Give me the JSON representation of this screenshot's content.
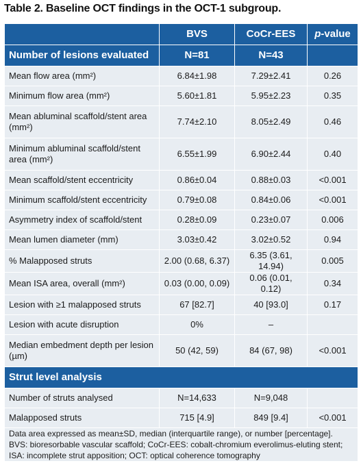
{
  "caption": "Table 2. Baseline OCT findings in the OCT-1 subgroup.",
  "header": {
    "col1": "",
    "bvs": "BVS",
    "eesl": "CoCr-EES",
    "p_prefix": "p",
    "p_suffix": "-value"
  },
  "lesions_section": {
    "label": "Number of lesions evaluated",
    "bvs": "N=81",
    "ees": "N=43",
    "p": ""
  },
  "lesion_rows": [
    {
      "label": "Mean flow area (mm²)",
      "bvs": "6.84±1.98",
      "ees": "7.29±2.41",
      "p": "0.26"
    },
    {
      "label": "Minimum flow area (mm²)",
      "bvs": "5.60±1.81",
      "ees": "5.95±2.23",
      "p": "0.35"
    },
    {
      "label": "Mean abluminal scaffold/stent area (mm²)",
      "bvs": "7.74±2.10",
      "ees": "8.05±2.49",
      "p": "0.46"
    },
    {
      "label": "Minimum abluminal scaffold/stent area (mm²)",
      "bvs": "6.55±1.99",
      "ees": "6.90±2.44",
      "p": "0.40"
    },
    {
      "label": "Mean scaffold/stent eccentricity",
      "bvs": "0.86±0.04",
      "ees": "0.88±0.03",
      "p": "<0.001"
    },
    {
      "label": "Minimum scaffold/stent eccentricity",
      "bvs": "0.79±0.08",
      "ees": "0.84±0.06",
      "p": "<0.001"
    },
    {
      "label": "Asymmetry index of scaffold/stent",
      "bvs": "0.28±0.09",
      "ees": "0.23±0.07",
      "p": "0.006"
    },
    {
      "label": "Mean lumen diameter (mm)",
      "bvs": "3.03±0.42",
      "ees": "3.02±0.52",
      "p": "0.94"
    },
    {
      "label": "% Malapposed struts",
      "bvs": "2.00 (0.68, 6.37)",
      "ees": "6.35 (3.61, 14.94)",
      "p": "0.005"
    },
    {
      "label": "Mean ISA area, overall (mm²)",
      "bvs": "0.03 (0.00, 0.09)",
      "ees": "0.06 (0.01, 0.12)",
      "p": "0.34"
    },
    {
      "label": "Lesion with ≥1 malapposed struts",
      "bvs": "67 [82.7]",
      "ees": "40 [93.0]",
      "p": "0.17"
    },
    {
      "label": "Lesion with acute disruption",
      "bvs": "0%",
      "ees": "–",
      "p": ""
    },
    {
      "label": "Median embedment depth per lesion (µm)",
      "bvs": "50 (42, 59)",
      "ees": "84 (67, 98)",
      "p": "<0.001"
    }
  ],
  "strut_section": {
    "label": "Strut level analysis"
  },
  "strut_rows": [
    {
      "label": "Number of struts analysed",
      "bvs": "N=14,633",
      "ees": "N=9,048",
      "p": ""
    },
    {
      "label": "Malapposed struts",
      "bvs": "715 [4.9]",
      "ees": "849 [9.4]",
      "p": "<0.001"
    }
  ],
  "footnote": "Data area expressed as mean±SD, median (interquartile range), or number [percentage]. BVS: bioresorbable vascular scaffold; CoCr-EES: cobalt-chromium everolimus-eluting stent; ISA: incomplete strut apposition; OCT: optical coherence tomography",
  "colors": {
    "header_bg": "#1c5fa0",
    "row_bg": "#e8edf2"
  }
}
